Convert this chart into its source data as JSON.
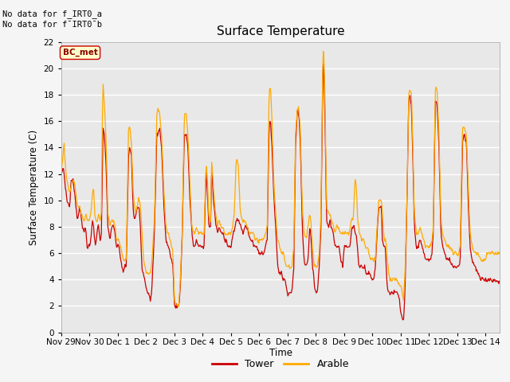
{
  "title": "Surface Temperature",
  "xlabel": "Time",
  "ylabel": "Surface Temperature (C)",
  "ylim": [
    0,
    22
  ],
  "yticks": [
    0,
    2,
    4,
    6,
    8,
    10,
    12,
    14,
    16,
    18,
    20,
    22
  ],
  "fig_bg_color": "#f0f0f0",
  "plot_bg_color": "#e8e8e8",
  "tower_color": "#cc0000",
  "arable_color": "#ffaa00",
  "tower_label": "Tower",
  "arable_label": "Arable",
  "note1": "No data for f_IRT0_a",
  "note2": "No data for f¯IRT0¯b",
  "bc_met_label": "BC_met",
  "x_tick_labels": [
    "Nov 29",
    "Nov 30",
    "Dec 1",
    "Dec 2",
    "Dec 3",
    "Dec 4",
    "Dec 5",
    "Dec 6",
    "Dec 7",
    "Dec 8",
    "Dec 9Dec",
    "10Dec",
    "11Dec",
    "12Dec",
    "13Dec 14"
  ],
  "grid_color": "#d0d0d0",
  "line_width": 0.9
}
